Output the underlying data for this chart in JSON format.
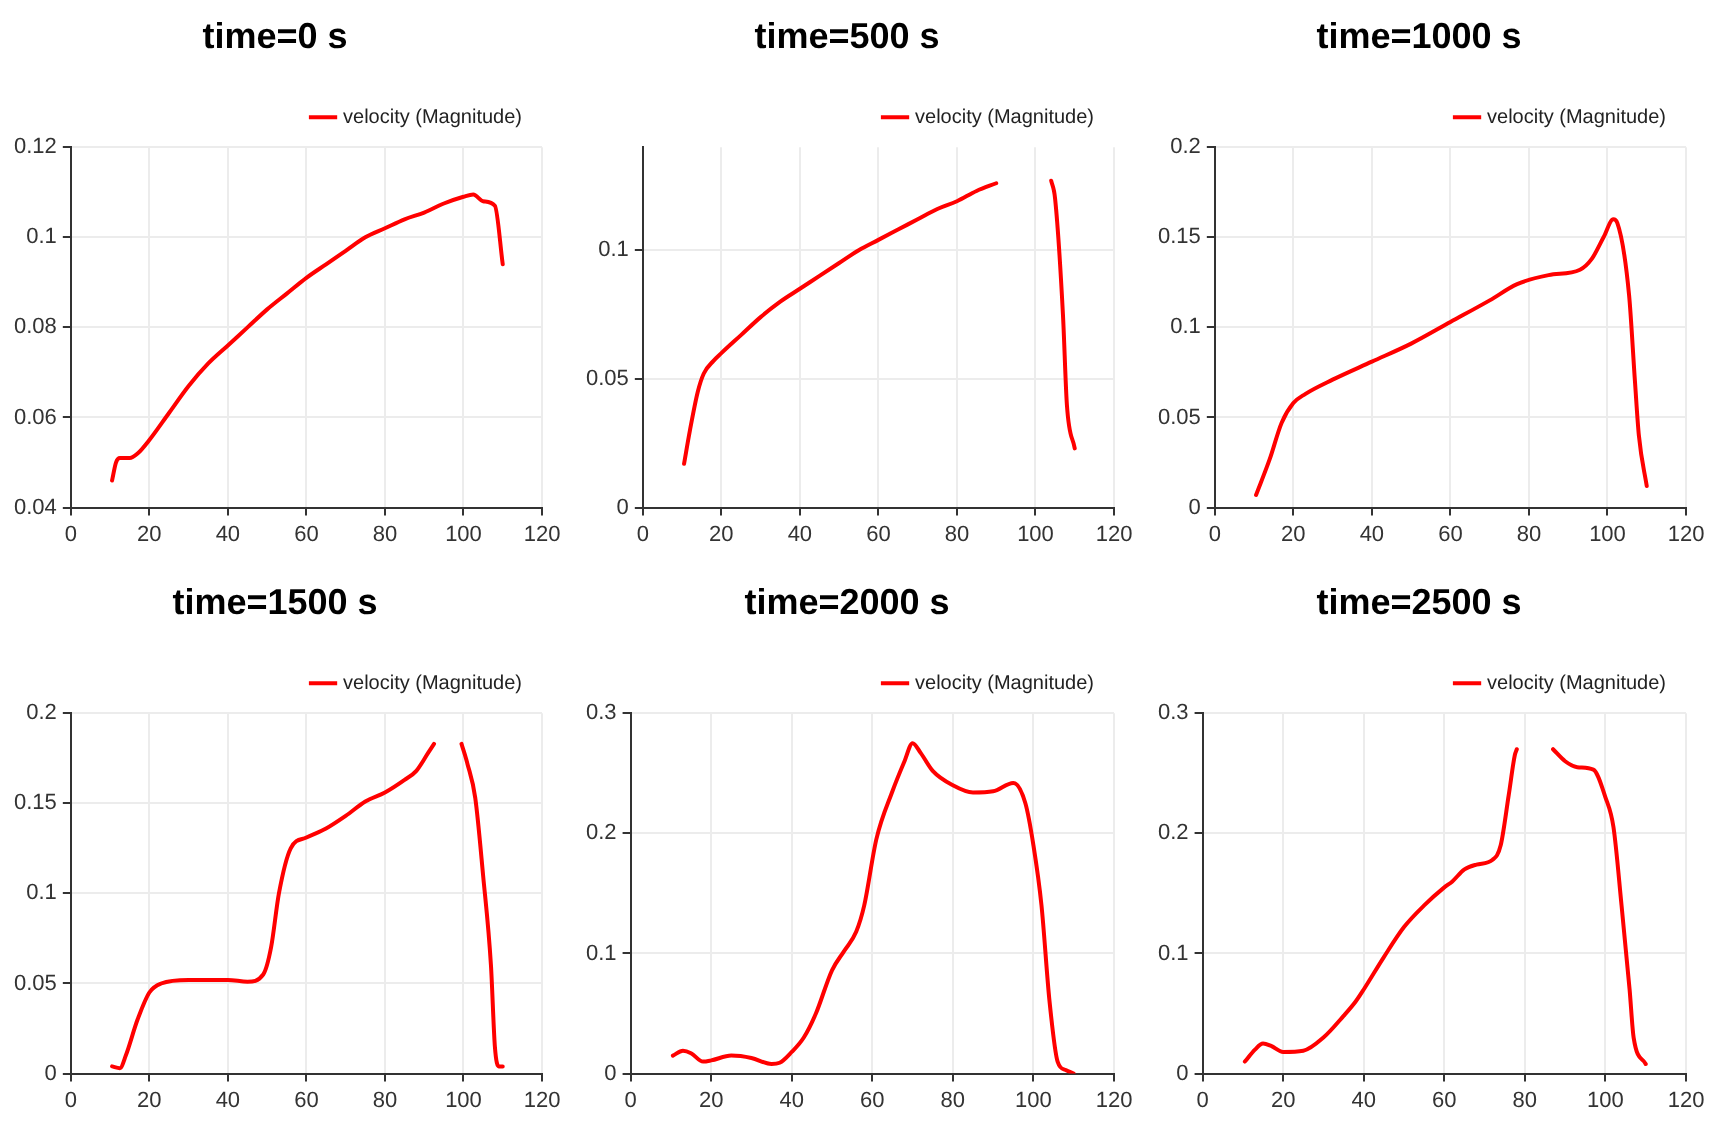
{
  "chart_data": [
    {
      "type": "line",
      "title": "time=0 s",
      "x": [
        10.5,
        11.5,
        12.5,
        15,
        17,
        20,
        25,
        30,
        35,
        40,
        45,
        50,
        55,
        60,
        65,
        70,
        75,
        80,
        85,
        90,
        95,
        100,
        102.5,
        105,
        108,
        110
      ],
      "series": [
        {
          "name": "velocity (Magnitude)",
          "color": "#ff0000",
          "values": [
            0.046,
            0.05,
            0.051,
            0.051,
            0.052,
            0.055,
            0.061,
            0.067,
            0.072,
            0.076,
            0.08,
            0.084,
            0.0875,
            0.091,
            0.094,
            0.097,
            0.1,
            0.102,
            0.104,
            0.1055,
            0.1075,
            0.109,
            0.1095,
            0.108,
            0.107,
            0.094
          ]
        }
      ],
      "xlim": [
        0,
        120
      ],
      "xticks": [
        0,
        20,
        40,
        60,
        80,
        100,
        120
      ],
      "ylim": [
        0.04,
        0.12
      ],
      "yticks": [
        0.04,
        0.06,
        0.08,
        0.1,
        0.12
      ],
      "grid": true,
      "legend": "top right",
      "marker": "none"
    },
    {
      "type": "line",
      "title": "time=500 s",
      "x": [
        10.5,
        12,
        14,
        15.5,
        18,
        20,
        25,
        30,
        35,
        40,
        45,
        50,
        55,
        60,
        65,
        70,
        75,
        80,
        85,
        90,
        97,
        104,
        105,
        107,
        108,
        110
      ],
      "series": [
        {
          "name": "velocity (Magnitude)",
          "color": "#ff0000",
          "values": [
            0.017,
            0.03,
            0.045,
            0.052,
            0.057,
            0.06,
            0.067,
            0.074,
            0.08,
            0.085,
            0.09,
            0.095,
            0.1,
            0.104,
            0.108,
            0.112,
            0.116,
            0.119,
            0.123,
            0.126,
            null,
            0.127,
            0.12,
            0.075,
            0.04,
            0.023
          ]
        }
      ],
      "xlim": [
        0,
        120
      ],
      "xticks": [
        0,
        20,
        40,
        60,
        80,
        100,
        120
      ],
      "ylim": [
        0,
        0.14
      ],
      "yticks": [
        0,
        0.05,
        0.1
      ],
      "grid": true,
      "legend": "top right",
      "marker": "none"
    },
    {
      "type": "line",
      "title": "time=1000 s",
      "x": [
        10.5,
        14,
        17,
        20,
        23,
        30,
        40,
        50,
        60,
        70,
        77,
        85,
        93,
        96,
        99,
        101.5,
        102.5,
        105.5,
        107,
        108,
        110
      ],
      "series": [
        {
          "name": "velocity (Magnitude)",
          "color": "#ff0000",
          "values": [
            0.007,
            0.027,
            0.047,
            0.058,
            0.063,
            0.071,
            0.081,
            0.091,
            0.103,
            0.115,
            0.124,
            0.129,
            0.132,
            0.138,
            0.15,
            0.16,
            0.158,
            0.118,
            0.07,
            0.04,
            0.012
          ]
        }
      ],
      "xlim": [
        0,
        120
      ],
      "xticks": [
        0,
        20,
        40,
        60,
        80,
        100,
        120
      ],
      "ylim": [
        0,
        0.2
      ],
      "yticks": [
        0,
        0.05,
        0.1,
        0.15,
        0.2
      ],
      "grid": true,
      "legend": "top right",
      "marker": "none"
    },
    {
      "type": "line",
      "title": "time=1500 s",
      "x": [
        10.5,
        12.5,
        14,
        17,
        20,
        23,
        30,
        40,
        45,
        49,
        51,
        53,
        56,
        60,
        65,
        70,
        75,
        80,
        85,
        88,
        91,
        92.5,
        96,
        99.5,
        101,
        103,
        105,
        107,
        108,
        109,
        110
      ],
      "series": [
        {
          "name": "velocity (Magnitude)",
          "color": "#ff0000",
          "values": [
            0.004,
            0.003,
            0.01,
            0.03,
            0.045,
            0.05,
            0.052,
            0.052,
            0.051,
            0.055,
            0.07,
            0.1,
            0.125,
            0.131,
            0.136,
            0.143,
            0.151,
            0.156,
            0.163,
            0.168,
            0.178,
            0.183,
            null,
            0.183,
            0.172,
            0.153,
            0.11,
            0.06,
            0.015,
            0.004,
            0.004
          ]
        }
      ],
      "xlim": [
        0,
        120
      ],
      "xticks": [
        0,
        20,
        40,
        60,
        80,
        100,
        120
      ],
      "ylim": [
        0,
        0.2
      ],
      "yticks": [
        0,
        0.05,
        0.1,
        0.15,
        0.2
      ],
      "grid": true,
      "legend": "top right",
      "marker": "none"
    },
    {
      "type": "line",
      "title": "time=2000 s",
      "x": [
        10.5,
        13,
        15,
        18,
        20,
        25,
        30,
        35,
        37,
        40,
        43,
        46,
        50,
        53,
        56,
        58,
        61,
        65,
        68,
        70,
        72,
        75,
        80,
        85,
        90,
        95,
        98,
        100,
        102,
        104,
        106,
        108,
        110
      ],
      "series": [
        {
          "name": "velocity (Magnitude)",
          "color": "#ff0000",
          "values": [
            0.015,
            0.019,
            0.017,
            0.01,
            0.011,
            0.015,
            0.013,
            0.008,
            0.009,
            0.018,
            0.03,
            0.05,
            0.086,
            0.102,
            0.118,
            0.14,
            0.195,
            0.235,
            0.26,
            0.275,
            0.267,
            0.252,
            0.24,
            0.234,
            0.235,
            0.242,
            0.225,
            0.19,
            0.14,
            0.06,
            0.01,
            0.003,
            0
          ]
        }
      ],
      "xlim": [
        0,
        120
      ],
      "xticks": [
        0,
        20,
        40,
        60,
        80,
        100,
        120
      ],
      "ylim": [
        0,
        0.3
      ],
      "yticks": [
        0,
        0.1,
        0.2,
        0.3
      ],
      "grid": true,
      "legend": "top right",
      "marker": "none"
    },
    {
      "type": "line",
      "title": "time=2500 s",
      "x": [
        10.5,
        13,
        15,
        17,
        20,
        25,
        30,
        35,
        38,
        40,
        45,
        50,
        55,
        60,
        62,
        65,
        68,
        72,
        74,
        76,
        77.5,
        78,
        82,
        87,
        90,
        93,
        97,
        100,
        102,
        104,
        106,
        107,
        110
      ],
      "series": [
        {
          "name": "velocity (Magnitude)",
          "color": "#ff0000",
          "values": [
            0.01,
            0.02,
            0.025,
            0.023,
            0.018,
            0.019,
            0.03,
            0.048,
            0.06,
            0.07,
            0.097,
            0.122,
            0.14,
            0.155,
            0.16,
            0.17,
            0.174,
            0.178,
            0.19,
            0.232,
            0.265,
            0.27,
            null,
            0.27,
            0.26,
            0.255,
            0.253,
            0.23,
            0.205,
            0.14,
            0.07,
            0.03,
            0.008
          ]
        }
      ],
      "xlim": [
        0,
        120
      ],
      "xticks": [
        0,
        20,
        40,
        60,
        80,
        100,
        120
      ],
      "ylim": [
        0,
        0.3
      ],
      "yticks": [
        0,
        0.1,
        0.2,
        0.3
      ],
      "grid": true,
      "legend": "top right",
      "marker": "none"
    }
  ]
}
